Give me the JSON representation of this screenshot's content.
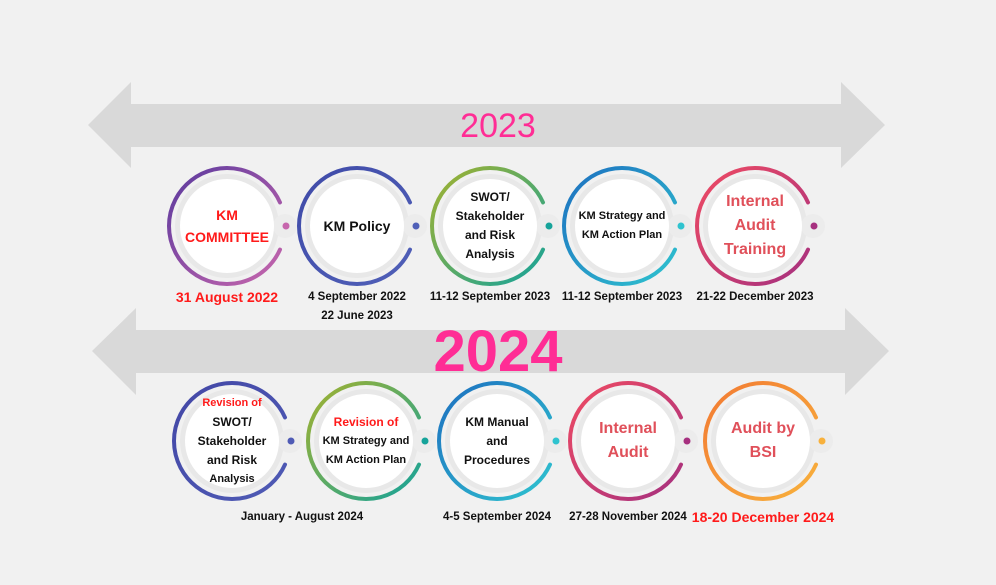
{
  "years": [
    "2023",
    "2024"
  ],
  "rows": [
    [
      {
        "lines": [
          {
            "text": "KM",
            "color": "#ff1a1a",
            "size": 14
          },
          {
            "text": "COMMITTEE",
            "color": "#ff1a1a",
            "size": 14
          }
        ],
        "c1": "#5b3a9e",
        "c2": "#c766ad",
        "dates": [
          {
            "text": "31 August 2022",
            "red": true
          }
        ]
      },
      {
        "lines": [
          {
            "text": "KM Policy",
            "size": 14
          }
        ],
        "c1": "#3f4aa8",
        "c2": "#5060b8",
        "dates": [
          {
            "text": "4 September 2022"
          },
          {
            "text": "22 June 2023"
          }
        ]
      },
      {
        "lines": [
          {
            "text": "SWOT/"
          },
          {
            "text": "Stakeholder"
          },
          {
            "text": "and Risk"
          },
          {
            "text": "Analysis"
          }
        ],
        "c1": "#a4b22e",
        "c2": "#16a39a",
        "dates": [
          {
            "text": "11-12 September 2023"
          }
        ]
      },
      {
        "lines": [
          {
            "text": "KM Strategy and",
            "size": 11
          },
          {
            "text": "KM Action Plan",
            "size": 11
          }
        ],
        "c1": "#1d6fc0",
        "c2": "#2fc3cf",
        "dates": [
          {
            "text": "11-12 September 2023"
          }
        ]
      },
      {
        "lines": [
          {
            "text": "Internal",
            "color": "#e0505a",
            "size": 16
          },
          {
            "text": "Audit",
            "color": "#e0505a",
            "size": 16
          },
          {
            "text": "Training",
            "color": "#e0505a",
            "size": 16
          }
        ],
        "c1": "#ef4b63",
        "c2": "#a6307f",
        "dates": [
          {
            "text": "21-22 December 2023"
          }
        ]
      }
    ],
    [
      {
        "lines": [
          {
            "text": "Revision of",
            "color": "#ff1a1a",
            "size": 11
          },
          {
            "text": "SWOT/"
          },
          {
            "text": "Stakeholder"
          },
          {
            "text": "and Risk"
          },
          {
            "text": "Analysis",
            "size": 11
          }
        ],
        "c1": "#4347a6",
        "c2": "#4f5bb5",
        "dates": []
      },
      {
        "lines": [
          {
            "text": "Revision of",
            "color": "#ff1a1a",
            "size": 12
          },
          {
            "text": "KM Strategy and",
            "size": 11
          },
          {
            "text": "KM Action Plan",
            "size": 11
          }
        ],
        "c1": "#a4b22e",
        "c2": "#16a39a",
        "dates": []
      },
      {
        "lines": [
          {
            "text": "KM Manual"
          },
          {
            "text": "and"
          },
          {
            "text": "Procedures"
          }
        ],
        "c1": "#1d6fc0",
        "c2": "#2fc3cf",
        "dates": [
          {
            "text": "4-5 September 2024"
          }
        ]
      },
      {
        "lines": [
          {
            "text": "Internal",
            "color": "#e0505a",
            "size": 16
          },
          {
            "text": "Audit",
            "color": "#e0505a",
            "size": 16
          }
        ],
        "c1": "#ef4b63",
        "c2": "#a6307f",
        "dates": [
          {
            "text": "27-28 November 2024"
          }
        ]
      },
      {
        "lines": [
          {
            "text": "Audit by",
            "color": "#e0505a",
            "size": 16
          },
          {
            "text": "BSI",
            "color": "#e0505a",
            "size": 16
          }
        ],
        "c1": "#f27a33",
        "c2": "#f8b13c",
        "dates": [
          {
            "text": "18-20 December 2024",
            "red": true
          }
        ]
      }
    ]
  ],
  "shared_date": "January - August 2024"
}
